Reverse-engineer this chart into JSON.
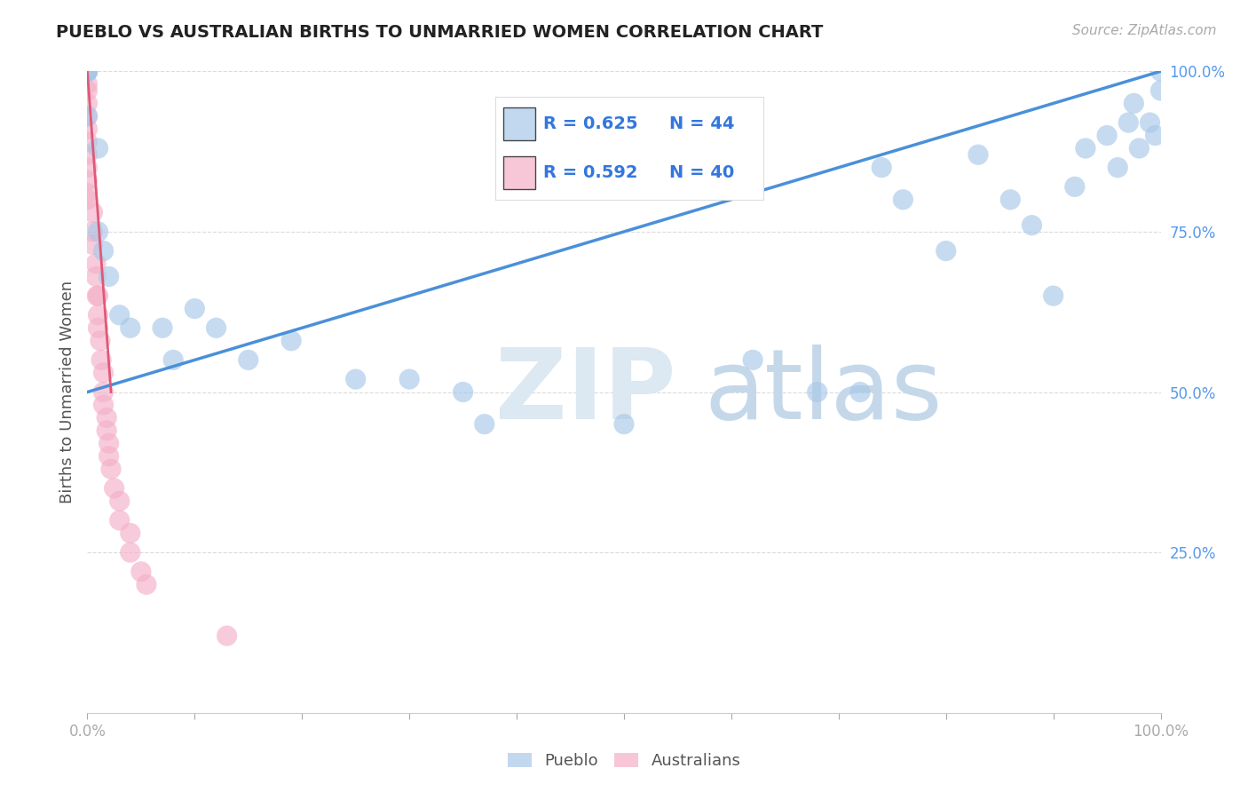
{
  "title": "PUEBLO VS AUSTRALIAN BIRTHS TO UNMARRIED WOMEN CORRELATION CHART",
  "source": "Source: ZipAtlas.com",
  "ylabel": "Births to Unmarried Women",
  "xlim": [
    0,
    1
  ],
  "ylim": [
    0,
    1
  ],
  "pueblo_color": "#a8c8e8",
  "aus_color": "#f4b0c8",
  "pueblo_line_color": "#4a90d9",
  "aus_line_color": "#e05878",
  "background_color": "#ffffff",
  "legend_pueblo_r": "R = 0.625",
  "legend_pueblo_n": "N = 44",
  "legend_aus_r": "R = 0.592",
  "legend_aus_n": "N = 40",
  "pueblo_line_x0": 0.0,
  "pueblo_line_y0": 0.5,
  "pueblo_line_x1": 1.0,
  "pueblo_line_y1": 1.0,
  "aus_line_x0": 0.0,
  "aus_line_y0": 1.0,
  "aus_line_x1": 0.022,
  "aus_line_y1": 0.5,
  "pueblo_x": [
    0.0,
    0.0,
    0.0,
    0.0,
    0.0,
    0.0,
    0.01,
    0.01,
    0.015,
    0.02,
    0.03,
    0.04,
    0.07,
    0.08,
    0.1,
    0.12,
    0.15,
    0.19,
    0.25,
    0.3,
    0.35,
    0.37,
    0.5,
    0.62,
    0.68,
    0.72,
    0.74,
    0.76,
    0.8,
    0.83,
    0.86,
    0.88,
    0.9,
    0.92,
    0.93,
    0.95,
    0.96,
    0.97,
    0.975,
    0.98,
    0.99,
    0.995,
    1.0,
    1.0
  ],
  "pueblo_y": [
    1.0,
    1.0,
    1.0,
    1.0,
    1.0,
    0.93,
    0.88,
    0.75,
    0.72,
    0.68,
    0.62,
    0.6,
    0.6,
    0.55,
    0.63,
    0.6,
    0.55,
    0.58,
    0.52,
    0.52,
    0.5,
    0.45,
    0.45,
    0.55,
    0.5,
    0.5,
    0.85,
    0.8,
    0.72,
    0.87,
    0.8,
    0.76,
    0.65,
    0.82,
    0.88,
    0.9,
    0.85,
    0.92,
    0.95,
    0.88,
    0.92,
    0.9,
    1.0,
    0.97
  ],
  "aus_x": [
    0.0,
    0.0,
    0.0,
    0.0,
    0.0,
    0.0,
    0.0,
    0.0,
    0.0,
    0.0,
    0.0,
    0.0,
    0.0,
    0.005,
    0.005,
    0.005,
    0.008,
    0.008,
    0.009,
    0.01,
    0.01,
    0.01,
    0.012,
    0.013,
    0.015,
    0.015,
    0.015,
    0.018,
    0.018,
    0.02,
    0.02,
    0.022,
    0.025,
    0.03,
    0.03,
    0.04,
    0.04,
    0.05,
    0.055,
    0.13
  ],
  "aus_y": [
    1.0,
    1.0,
    0.98,
    0.97,
    0.95,
    0.93,
    0.91,
    0.89,
    0.87,
    0.85,
    0.83,
    0.81,
    0.8,
    0.78,
    0.75,
    0.73,
    0.7,
    0.68,
    0.65,
    0.65,
    0.62,
    0.6,
    0.58,
    0.55,
    0.53,
    0.5,
    0.48,
    0.46,
    0.44,
    0.42,
    0.4,
    0.38,
    0.35,
    0.33,
    0.3,
    0.28,
    0.25,
    0.22,
    0.2,
    0.12
  ]
}
